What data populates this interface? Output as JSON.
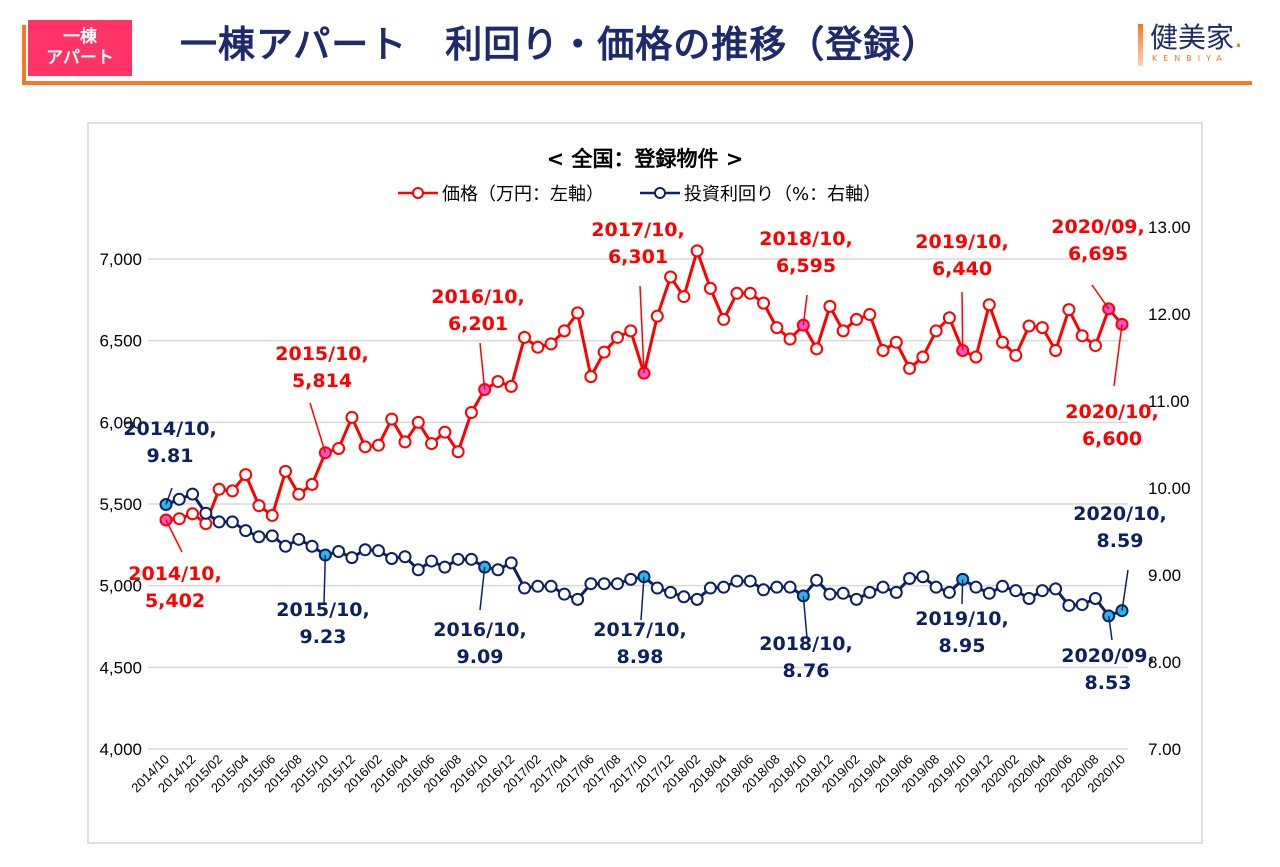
{
  "header": {
    "badge_line1": "一棟",
    "badge_line2": "アパート",
    "title": "一棟アパート　利回り・価格の推移（登録）",
    "logo_text": "健美家",
    "logo_dot": ".",
    "logo_sub": "KENBIYA"
  },
  "colors": {
    "accent": "#f47920",
    "badge": "#ff3366",
    "title": "#1f2a6b",
    "price_line": "#ff0000",
    "yield_line": "#0d2060",
    "price_highlight": "#ff55cc",
    "yield_highlight": "#29b6e8",
    "grid": "#d9d9d9"
  },
  "chart_data": {
    "type": "line",
    "title": "< 全国：登録物件 >",
    "legend_position": "top-center",
    "grid": true,
    "x": [
      "2014/10",
      "2014/11",
      "2014/12",
      "2015/01",
      "2015/02",
      "2015/03",
      "2015/04",
      "2015/05",
      "2015/06",
      "2015/07",
      "2015/08",
      "2015/09",
      "2015/10",
      "2015/11",
      "2015/12",
      "2016/01",
      "2016/02",
      "2016/03",
      "2016/04",
      "2016/05",
      "2016/06",
      "2016/07",
      "2016/08",
      "2016/09",
      "2016/10",
      "2016/11",
      "2016/12",
      "2017/01",
      "2017/02",
      "2017/03",
      "2017/04",
      "2017/05",
      "2017/06",
      "2017/07",
      "2017/08",
      "2017/09",
      "2017/10",
      "2017/11",
      "2017/12",
      "2018/01",
      "2018/02",
      "2018/03",
      "2018/04",
      "2018/05",
      "2018/06",
      "2018/07",
      "2018/08",
      "2018/09",
      "2018/10",
      "2018/11",
      "2018/12",
      "2019/01",
      "2019/02",
      "2019/03",
      "2019/04",
      "2019/05",
      "2019/06",
      "2019/07",
      "2019/08",
      "2019/09",
      "2019/10",
      "2019/11",
      "2019/12",
      "2020/01",
      "2020/02",
      "2020/03",
      "2020/04",
      "2020/05",
      "2020/06",
      "2020/07",
      "2020/08",
      "2020/09",
      "2020/10"
    ],
    "x_tick_labels": [
      "2014/10",
      "2014/12",
      "2015/02",
      "2015/04",
      "2015/06",
      "2015/08",
      "2015/10",
      "2015/12",
      "2016/02",
      "2016/04",
      "2016/06",
      "2016/08",
      "2016/10",
      "2016/12",
      "2017/02",
      "2017/04",
      "2017/06",
      "2017/08",
      "2017/10",
      "2017/12",
      "2018/02",
      "2018/04",
      "2018/06",
      "2018/08",
      "2018/10",
      "2018/12",
      "2019/02",
      "2019/04",
      "2019/06",
      "2019/08",
      "2019/10",
      "2019/12",
      "2020/02",
      "2020/04",
      "2020/06",
      "2020/08",
      "2020/10"
    ],
    "y_left": {
      "label": "価格（万円）",
      "ylim": [
        4000,
        7000
      ],
      "ticks": [
        "4,000",
        "4,500",
        "5,000",
        "5,500",
        "6,000",
        "6,500",
        "7,000"
      ]
    },
    "y_right": {
      "label": "投資利回り（%）",
      "ylim": [
        7,
        13
      ],
      "ticks": [
        "7.00",
        "8.00",
        "9.00",
        "10.00",
        "11.00",
        "12.00",
        "13.00"
      ]
    },
    "series": [
      {
        "name": "価格（万円：左軸）",
        "axis": "left",
        "values": [
          5402,
          5410,
          5440,
          5380,
          5590,
          5580,
          5680,
          5490,
          5430,
          5700,
          5560,
          5620,
          5814,
          5840,
          6030,
          5850,
          5860,
          6020,
          5880,
          6000,
          5870,
          5940,
          5820,
          6060,
          6201,
          6250,
          6220,
          6520,
          6460,
          6480,
          6560,
          6670,
          6280,
          6430,
          6520,
          6560,
          6301,
          6650,
          6890,
          6770,
          7050,
          6820,
          6630,
          6790,
          6790,
          6730,
          6580,
          6510,
          6595,
          6450,
          6710,
          6560,
          6630,
          6660,
          6440,
          6490,
          6330,
          6400,
          6560,
          6640,
          6440,
          6400,
          6720,
          6490,
          6410,
          6590,
          6580,
          6440,
          6690,
          6530,
          6470,
          6695,
          6600
        ],
        "annotations": [
          {
            "x": "2014/10",
            "text1": "2014/10,",
            "text2": "5,402"
          },
          {
            "x": "2015/10",
            "text1": "2015/10,",
            "text2": "5,814"
          },
          {
            "x": "2016/10",
            "text1": "2016/10,",
            "text2": "6,201"
          },
          {
            "x": "2017/10",
            "text1": "2017/10,",
            "text2": "6,301"
          },
          {
            "x": "2018/10",
            "text1": "2018/10,",
            "text2": "6,595"
          },
          {
            "x": "2019/10",
            "text1": "2019/10,",
            "text2": "6,440"
          },
          {
            "x": "2020/09",
            "text1": "2020/09,",
            "text2": "6,695"
          },
          {
            "x": "2020/10",
            "text1": "2020/10,",
            "text2": "6,600"
          }
        ]
      },
      {
        "name": "投資利回り（%：右軸）",
        "axis": "right",
        "values": [
          9.81,
          9.87,
          9.93,
          9.71,
          9.61,
          9.61,
          9.51,
          9.44,
          9.45,
          9.33,
          9.41,
          9.33,
          9.23,
          9.27,
          9.2,
          9.29,
          9.28,
          9.19,
          9.21,
          9.06,
          9.16,
          9.09,
          9.18,
          9.18,
          9.09,
          9.06,
          9.14,
          8.85,
          8.87,
          8.87,
          8.78,
          8.72,
          8.9,
          8.9,
          8.9,
          8.95,
          8.98,
          8.85,
          8.8,
          8.75,
          8.72,
          8.85,
          8.86,
          8.93,
          8.93,
          8.83,
          8.86,
          8.86,
          8.76,
          8.94,
          8.78,
          8.79,
          8.72,
          8.8,
          8.86,
          8.8,
          8.96,
          8.98,
          8.86,
          8.8,
          8.95,
          8.86,
          8.79,
          8.87,
          8.82,
          8.73,
          8.82,
          8.84,
          8.65,
          8.66,
          8.73,
          8.53,
          8.59
        ],
        "annotations": [
          {
            "x": "2014/10",
            "text1": "2014/10,",
            "text2": "9.81"
          },
          {
            "x": "2015/10",
            "text1": "2015/10,",
            "text2": "9.23"
          },
          {
            "x": "2016/10",
            "text1": "2016/10,",
            "text2": "9.09"
          },
          {
            "x": "2017/10",
            "text1": "2017/10,",
            "text2": "8.98"
          },
          {
            "x": "2018/10",
            "text1": "2018/10,",
            "text2": "8.76"
          },
          {
            "x": "2019/10",
            "text1": "2019/10,",
            "text2": "8.95"
          },
          {
            "x": "2020/09",
            "text1": "2020/09,",
            "text2": "8.53"
          },
          {
            "x": "2020/10",
            "text1": "2020/10,",
            "text2": "8.59"
          }
        ]
      }
    ]
  }
}
